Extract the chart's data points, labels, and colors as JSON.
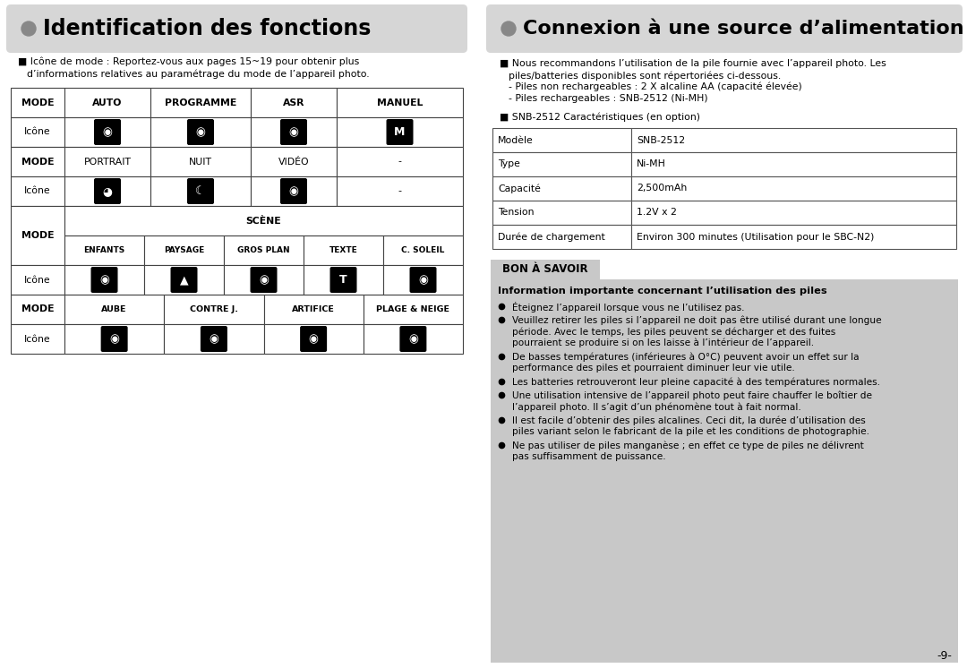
{
  "bg_color": "#ffffff",
  "left_title": "Identification des fonctions",
  "right_title": "Connexion à une source d’alimentation",
  "title_bg": "#d8d8d8",
  "left_note_line1": "■ Icône de mode : Reportez-vous aux pages 15~19 pour obtenir plus",
  "left_note_line2": "d’informations relatives au paramétrage du mode de l’appareil photo.",
  "table1_headers": [
    "MODE",
    "AUTO",
    "PROGRAMME",
    "ASR",
    "MANUEL"
  ],
  "icon_row1_label": "Icône",
  "icon_row1_syms": [
    "■",
    "■",
    "■",
    "M"
  ],
  "table1_row3": [
    "MODE",
    "PORTRAIT",
    "NUIT",
    "VIDÉO",
    "-"
  ],
  "icon_row2_label": "Icône",
  "icon_row2_syms": [
    "■",
    "■",
    "■"
  ],
  "scene_header": "SCÈNE",
  "scene_cols": [
    "ENFANTS",
    "PAYSAGE",
    "GROS PLAN",
    "TEXTE",
    "C. SOLEIL"
  ],
  "scene_icon_syms": [
    "■",
    "■",
    "■",
    "T",
    "■"
  ],
  "mode_row2": [
    "MODE",
    "AUBE",
    "CONTRE J.",
    "ARTIFICE",
    "PLAGE & NEIGE"
  ],
  "icon_row4_syms": [
    "■",
    "■",
    "■",
    "■"
  ],
  "right_para_lines": [
    "■ Nous recommandons l’utilisation de la pile fournie avec l’appareil photo. Les",
    "piles/batteries disponibles sont répertoriées ci-dessous.",
    "- Piles non rechargeables : 2 X alcaline AA (capacité élevée)",
    "- Piles rechargeables : SNB-2512 (Ni-MH)"
  ],
  "right_para2": "■ SNB-2512 Caractéristiques (en option)",
  "table2": [
    [
      "Modèle",
      "SNB-2512"
    ],
    [
      "Type",
      "Ni-MH"
    ],
    [
      "Capacité",
      "2,500mAh"
    ],
    [
      "Tension",
      "1.2V x 2"
    ],
    [
      "Durée de chargement",
      "Environ 300 minutes (Utilisation pour le SBC-N2)"
    ]
  ],
  "bon_title": "BON À SAVOIR",
  "bon_bg": "#c8c8c8",
  "bon_subtitle": "Information importante concernant l’utilisation des piles",
  "bon_bullets": [
    [
      "Éteignez l’appareil lorsque vous ne l’utilisez pas."
    ],
    [
      "Veuillez retirer les piles si l’appareil ne doit pas être utilisé durant une longue",
      "période. Avec le temps, les piles peuvent se décharger et des fuites",
      "pourraient se produire si on les laisse à l’intérieur de l’appareil."
    ],
    [
      "De basses températures (inférieures à O°C) peuvent avoir un effet sur la",
      "performance des piles et pourraient diminuer leur vie utile."
    ],
    [
      "Les batteries retrouveront leur pleine capacité à des températures normales."
    ],
    [
      "Une utilisation intensive de l’appareil photo peut faire chauffer le boîtier de",
      "l’appareil photo. Il s’agit d’un phénomène tout à fait normal."
    ],
    [
      "Il est facile d’obtenir des piles alcalines. Ceci dit, la durée d’utilisation des",
      "piles variant selon le fabricant de la pile et les conditions de photographie."
    ],
    [
      "Ne pas utiliser de piles manganèse ; en effet ce type de piles ne délivrent",
      "pas suffisamment de puissance."
    ]
  ],
  "page_number": "-9-"
}
